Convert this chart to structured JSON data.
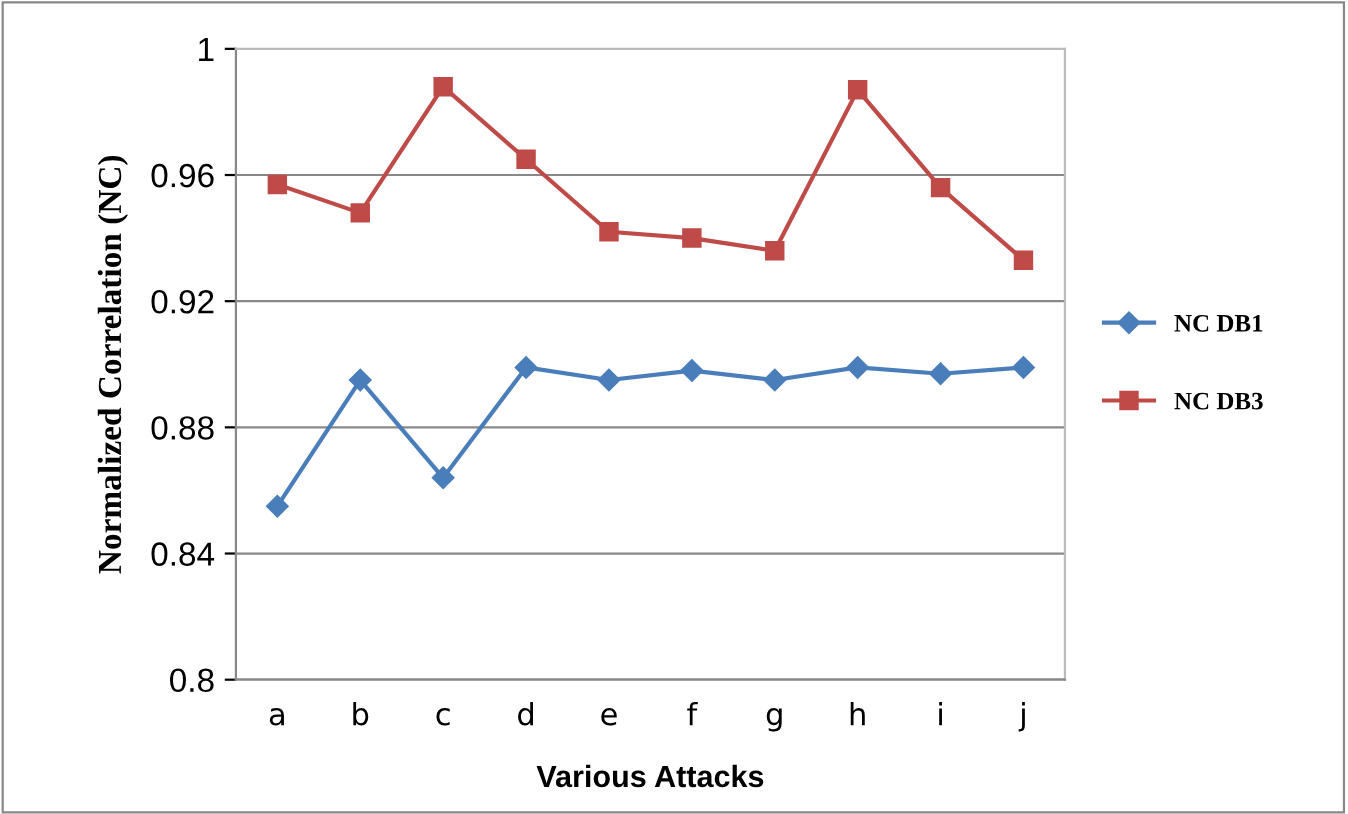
{
  "chart_data": {
    "type": "line",
    "xlabel": "Various Attacks",
    "ylabel": "Normalized Correlation (NC)",
    "categories": [
      "a",
      "b",
      "c",
      "d",
      "e",
      "f",
      "g",
      "h",
      "i",
      "j"
    ],
    "series": [
      {
        "name": "NC DB1",
        "color": "#4a7ebb",
        "marker": "diamond",
        "values": [
          0.855,
          0.895,
          0.864,
          0.899,
          0.895,
          0.898,
          0.895,
          0.899,
          0.897,
          0.899
        ]
      },
      {
        "name": "NC DB3",
        "color": "#be4b48",
        "marker": "square",
        "values": [
          0.957,
          0.948,
          0.988,
          0.965,
          0.942,
          0.94,
          0.936,
          0.987,
          0.956,
          0.933
        ]
      }
    ],
    "ylim": [
      0.8,
      1
    ],
    "yticks": [
      0.8,
      0.84,
      0.88,
      0.92,
      0.96,
      1
    ],
    "grid": "y",
    "legend": "right",
    "line_style": "solid"
  }
}
